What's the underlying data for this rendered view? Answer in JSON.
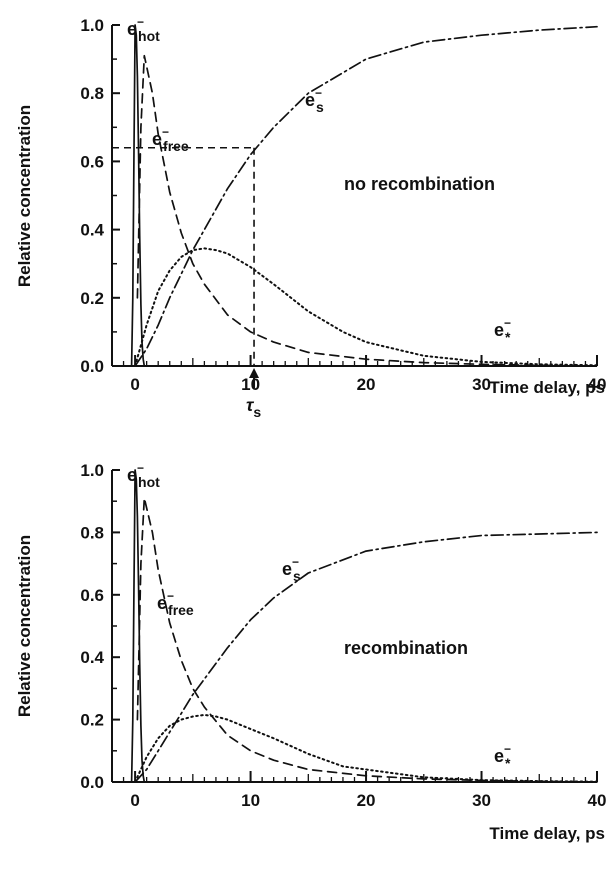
{
  "chart_data": [
    {
      "type": "line",
      "title": "",
      "xlabel": "Time delay, ps",
      "ylabel": "Relative concentration",
      "xlim": [
        -2,
        40
      ],
      "ylim": [
        0,
        1
      ],
      "x_ticks": [
        0,
        10,
        20,
        30,
        40
      ],
      "y_ticks": [
        "0.0",
        "0.2",
        "0.4",
        "0.6",
        "0.8",
        "1.0"
      ],
      "annotation": "no recombination",
      "marker_label": "τ",
      "marker_label_sub": "s",
      "marker_x": 10.3,
      "reference_level": 0.64,
      "series": [
        {
          "name": "e_hot",
          "label_main": "e",
          "label_sup": "−",
          "label_sub": "hot",
          "style": "solid",
          "x": [
            -0.3,
            -0.2,
            -0.1,
            0,
            0.1,
            0.2,
            0.3,
            0.4,
            0.5,
            0.6,
            0.7,
            0.8
          ],
          "y": [
            0,
            0.2,
            0.6,
            1.0,
            0.97,
            0.85,
            0.62,
            0.38,
            0.18,
            0.07,
            0.02,
            0
          ]
        },
        {
          "name": "e_free",
          "label_main": "e",
          "label_sup": "−",
          "label_sub": "free",
          "style": "dashed",
          "x": [
            0.2,
            0.5,
            0.8,
            1.5,
            2,
            3,
            4,
            5,
            6,
            8,
            10,
            12,
            15,
            20,
            25,
            30,
            35,
            40
          ],
          "y": [
            0.2,
            0.7,
            0.91,
            0.8,
            0.68,
            0.51,
            0.39,
            0.3,
            0.24,
            0.15,
            0.1,
            0.07,
            0.04,
            0.02,
            0.01,
            0.005,
            0.002,
            0.0
          ]
        },
        {
          "name": "e_s",
          "label_main": "e",
          "label_sup": "−",
          "label_sub": "s",
          "style": "dashdot",
          "x": [
            0,
            1,
            2,
            3,
            4,
            5,
            6,
            8,
            10,
            12,
            15,
            20,
            25,
            30,
            35,
            40
          ],
          "y": [
            0,
            0.05,
            0.12,
            0.2,
            0.27,
            0.34,
            0.4,
            0.52,
            0.62,
            0.7,
            0.8,
            0.9,
            0.95,
            0.97,
            0.985,
            0.995
          ]
        },
        {
          "name": "e_star",
          "label_main": "e",
          "label_sup": "−",
          "label_sub": "*",
          "style": "dotted",
          "x": [
            0,
            1,
            2,
            3,
            4,
            5,
            6,
            7,
            8,
            10,
            12,
            15,
            18,
            20,
            25,
            30,
            35,
            40
          ],
          "y": [
            0,
            0.12,
            0.22,
            0.28,
            0.32,
            0.34,
            0.345,
            0.34,
            0.33,
            0.29,
            0.24,
            0.16,
            0.1,
            0.07,
            0.03,
            0.012,
            0.005,
            0.002
          ]
        }
      ]
    },
    {
      "type": "line",
      "title": "",
      "xlabel": "Time delay, ps",
      "ylabel": "Relative concentration",
      "xlim": [
        -2,
        40
      ],
      "ylim": [
        0,
        1
      ],
      "x_ticks": [
        0,
        10,
        20,
        30,
        40
      ],
      "y_ticks": [
        "0.0",
        "0.2",
        "0.4",
        "0.6",
        "0.8",
        "1.0"
      ],
      "annotation": "recombination",
      "series": [
        {
          "name": "e_hot",
          "label_main": "e",
          "label_sup": "−",
          "label_sub": "hot",
          "style": "solid",
          "x": [
            -0.3,
            -0.2,
            -0.1,
            0,
            0.1,
            0.2,
            0.3,
            0.4,
            0.5,
            0.6,
            0.7,
            0.8
          ],
          "y": [
            0,
            0.2,
            0.6,
            1.0,
            0.97,
            0.85,
            0.62,
            0.38,
            0.18,
            0.07,
            0.02,
            0
          ]
        },
        {
          "name": "e_free",
          "label_main": "e",
          "label_sup": "−",
          "label_sub": "free",
          "style": "dashed",
          "x": [
            0.2,
            0.5,
            0.8,
            1.5,
            2,
            3,
            4,
            5,
            6,
            8,
            10,
            12,
            15,
            20,
            25,
            30,
            35,
            40
          ],
          "y": [
            0.2,
            0.7,
            0.91,
            0.8,
            0.68,
            0.51,
            0.39,
            0.3,
            0.24,
            0.15,
            0.1,
            0.07,
            0.04,
            0.02,
            0.01,
            0.005,
            0.002,
            0.0
          ]
        },
        {
          "name": "e_s",
          "label_main": "e",
          "label_sup": "−",
          "label_sub": "s",
          "style": "dashdot",
          "x": [
            0,
            1,
            2,
            3,
            4,
            5,
            6,
            8,
            10,
            12,
            15,
            20,
            25,
            30,
            35,
            40
          ],
          "y": [
            0,
            0.04,
            0.1,
            0.16,
            0.22,
            0.28,
            0.33,
            0.43,
            0.52,
            0.59,
            0.67,
            0.74,
            0.77,
            0.79,
            0.795,
            0.8
          ]
        },
        {
          "name": "e_star",
          "label_main": "e",
          "label_sup": "−",
          "label_sub": "*",
          "style": "dotted",
          "x": [
            0,
            1,
            2,
            3,
            4,
            5,
            6,
            7,
            8,
            10,
            12,
            15,
            18,
            20,
            25,
            30,
            35,
            40
          ],
          "y": [
            0,
            0.08,
            0.14,
            0.18,
            0.2,
            0.21,
            0.215,
            0.21,
            0.2,
            0.17,
            0.14,
            0.09,
            0.05,
            0.04,
            0.015,
            0.006,
            0.003,
            0.001
          ]
        }
      ]
    }
  ]
}
